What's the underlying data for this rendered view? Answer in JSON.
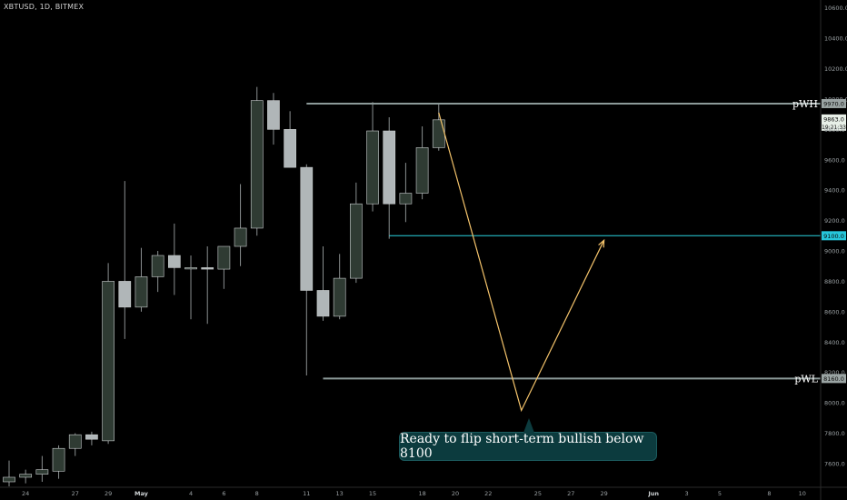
{
  "symbol_text": "XBTUSD, 1D, BITMEX",
  "colors": {
    "background": "#000000",
    "up_body": "#2f3b33",
    "down_body": "#b0b6b8",
    "wick": "#8a8f90",
    "level_line": "#8c9a99",
    "support_line": "#2ad4df",
    "projection": "#f4c36b",
    "axis_text": "#9aa0a3"
  },
  "chart_data": {
    "type": "candlestick",
    "title": "",
    "y_axis": {
      "position": "right",
      "ticks": [
        7600,
        7800,
        8000,
        8200,
        8400,
        8600,
        8800,
        9000,
        9200,
        9400,
        9600,
        9800,
        10000,
        10200,
        10400,
        10600
      ],
      "tick_labels": [
        "7600.0",
        "7800.0",
        "8000.0",
        "8200.0",
        "8400.0",
        "8600.0",
        "8800.0",
        "9000.0",
        "9200.0",
        "9400.0",
        "9600.0",
        "9800.0",
        "10000.0",
        "10200.0",
        "10400.0",
        "10600.0"
      ],
      "range": [
        7450,
        10640
      ]
    },
    "x_axis": {
      "dates": [
        "Apr 24",
        "Apr 27",
        "Apr 29",
        "May 1",
        "May 4",
        "May 6",
        "May 8",
        "May 11",
        "May 13",
        "May 15",
        "May 18",
        "May 20",
        "May 22",
        "May 25",
        "May 27",
        "May 29",
        "Jun 1",
        "Jun 3",
        "Jun 5",
        "Jun 8",
        "Jun 10"
      ],
      "labels": [
        "24",
        "27",
        "29",
        "May",
        "4",
        "6",
        "8",
        "11",
        "13",
        "15",
        "18",
        "20",
        "22",
        "25",
        "27",
        "29",
        "Jun",
        "3",
        "5",
        "8",
        "10"
      ],
      "range": [
        "Apr 23",
        "Jun 11"
      ]
    },
    "candles": [
      {
        "date": "Apr 23",
        "open": 7480,
        "high": 7620,
        "low": 7450,
        "close": 7510
      },
      {
        "date": "Apr 24",
        "open": 7510,
        "high": 7560,
        "low": 7470,
        "close": 7530
      },
      {
        "date": "Apr 25",
        "open": 7530,
        "high": 7650,
        "low": 7480,
        "close": 7560
      },
      {
        "date": "Apr 26",
        "open": 7550,
        "high": 7720,
        "low": 7500,
        "close": 7700
      },
      {
        "date": "Apr 27",
        "open": 7700,
        "high": 7800,
        "low": 7650,
        "close": 7790
      },
      {
        "date": "Apr 28",
        "open": 7790,
        "high": 7810,
        "low": 7720,
        "close": 7760
      },
      {
        "date": "Apr 29",
        "open": 7750,
        "high": 8920,
        "low": 7730,
        "close": 8800
      },
      {
        "date": "Apr 30",
        "open": 8800,
        "high": 9460,
        "low": 8420,
        "close": 8630
      },
      {
        "date": "May 1",
        "open": 8630,
        "high": 9020,
        "low": 8600,
        "close": 8830
      },
      {
        "date": "May 2",
        "open": 8830,
        "high": 9000,
        "low": 8730,
        "close": 8970
      },
      {
        "date": "May 3",
        "open": 8970,
        "high": 9180,
        "low": 8710,
        "close": 8890
      },
      {
        "date": "May 4",
        "open": 8890,
        "high": 8970,
        "low": 8550,
        "close": 8890
      },
      {
        "date": "May 5",
        "open": 8890,
        "high": 9030,
        "low": 8520,
        "close": 8880
      },
      {
        "date": "May 6",
        "open": 8880,
        "high": 9030,
        "low": 8750,
        "close": 9030
      },
      {
        "date": "May 7",
        "open": 9030,
        "high": 9440,
        "low": 8900,
        "close": 9150
      },
      {
        "date": "May 8",
        "open": 9150,
        "high": 10080,
        "low": 9100,
        "close": 9990
      },
      {
        "date": "May 9",
        "open": 9990,
        "high": 10040,
        "low": 9700,
        "close": 9800
      },
      {
        "date": "May 10",
        "open": 9800,
        "high": 9920,
        "low": 9550,
        "close": 9550
      },
      {
        "date": "May 11",
        "open": 9550,
        "high": 9570,
        "low": 8180,
        "close": 8740
      },
      {
        "date": "May 12",
        "open": 8740,
        "high": 9030,
        "low": 8540,
        "close": 8570
      },
      {
        "date": "May 13",
        "open": 8570,
        "high": 8980,
        "low": 8550,
        "close": 8820
      },
      {
        "date": "May 14",
        "open": 8820,
        "high": 9450,
        "low": 8790,
        "close": 9310
      },
      {
        "date": "May 15",
        "open": 9310,
        "high": 9980,
        "low": 9260,
        "close": 9790
      },
      {
        "date": "May 16",
        "open": 9790,
        "high": 9880,
        "low": 9080,
        "close": 9310
      },
      {
        "date": "May 17",
        "open": 9310,
        "high": 9580,
        "low": 9190,
        "close": 9380
      },
      {
        "date": "May 18",
        "open": 9380,
        "high": 9820,
        "low": 9340,
        "close": 9680
      },
      {
        "date": "May 19",
        "open": 9680,
        "high": 9970,
        "low": 9660,
        "close": 9863
      }
    ],
    "levels": [
      {
        "label": "pWH",
        "value": 9970,
        "axis_label": "9970.0",
        "start": "May 11"
      },
      {
        "label": "",
        "value": 9100,
        "axis_label": "9100.0",
        "start": "May 16"
      },
      {
        "label": "pWL",
        "value": 8160,
        "axis_label": "8160.0",
        "start": "May 12"
      }
    ],
    "current_price": {
      "value": 9863,
      "label": "9863.0",
      "countdown": "19:21:33"
    },
    "projection_path": [
      {
        "date": "May 19",
        "value": 9910
      },
      {
        "date": "May 24",
        "value": 7950
      },
      {
        "date": "May 29",
        "value": 9070
      }
    ],
    "annotation": {
      "text": "Ready to flip short-term bullish below 8100",
      "date": "May 24"
    }
  }
}
